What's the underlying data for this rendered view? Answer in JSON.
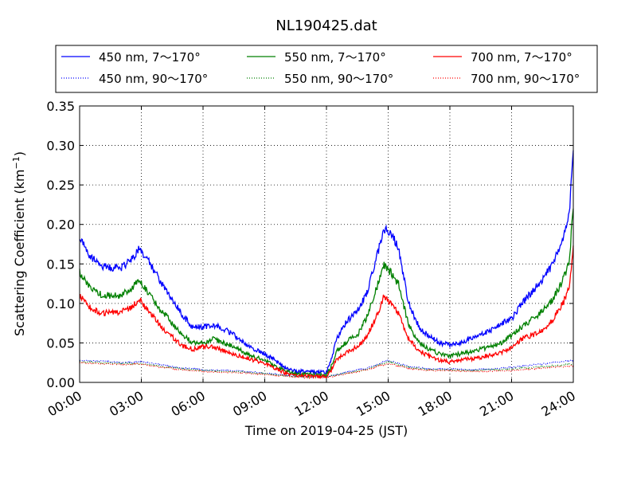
{
  "chart_data": {
    "type": "line",
    "title": "NL190425.dat",
    "xlabel": "Time on 2019-04-25 (JST)",
    "ylabel_main": "Scattering Coefficient (km",
    "ylabel_exp": "−1",
    "ylabel_close": ")",
    "xlim": [
      0,
      24
    ],
    "ylim": [
      0,
      0.35
    ],
    "x_ticks": [
      0,
      3,
      6,
      9,
      12,
      15,
      18,
      21,
      24
    ],
    "x_tick_labels": [
      "00:00",
      "03:00",
      "06:00",
      "09:00",
      "12:00",
      "15:00",
      "18:00",
      "21:00",
      "24:00"
    ],
    "y_ticks": [
      0,
      0.05,
      0.1,
      0.15,
      0.2,
      0.25,
      0.3,
      0.35
    ],
    "y_tick_labels": [
      "0.00",
      "0.05",
      "0.10",
      "0.15",
      "0.20",
      "0.25",
      "0.30",
      "0.35"
    ],
    "grid": true,
    "legend_position": "top",
    "series": [
      {
        "name": "450 nm, 7～170°",
        "color": "#0000ff",
        "style": "solid",
        "x": [
          0,
          0.5,
          1,
          1.5,
          2,
          2.5,
          2.9,
          3.3,
          4,
          4.5,
          5,
          5.5,
          6,
          6.5,
          7,
          7.5,
          8,
          8.5,
          9,
          9.5,
          10,
          10.5,
          11,
          11.5,
          12,
          12.2,
          12.5,
          13,
          13.5,
          14,
          14.5,
          14.8,
          15.1,
          15.5,
          16,
          16.5,
          17,
          17.5,
          18,
          18.5,
          19,
          19.5,
          20,
          20.5,
          21,
          21.5,
          22,
          22.5,
          23,
          23.5,
          23.8,
          24
        ],
        "y": [
          0.185,
          0.16,
          0.148,
          0.145,
          0.145,
          0.155,
          0.17,
          0.155,
          0.125,
          0.105,
          0.085,
          0.07,
          0.07,
          0.073,
          0.068,
          0.06,
          0.05,
          0.042,
          0.036,
          0.028,
          0.018,
          0.014,
          0.014,
          0.013,
          0.013,
          0.025,
          0.055,
          0.078,
          0.09,
          0.115,
          0.165,
          0.195,
          0.19,
          0.17,
          0.1,
          0.07,
          0.058,
          0.05,
          0.048,
          0.05,
          0.055,
          0.06,
          0.066,
          0.075,
          0.08,
          0.1,
          0.115,
          0.13,
          0.15,
          0.18,
          0.21,
          0.3
        ]
      },
      {
        "name": "450 nm, 90～170°",
        "color": "#0000ff",
        "style": "dotted",
        "x": [
          0,
          1,
          2,
          3,
          4,
          5,
          6,
          7,
          8,
          9,
          10,
          11,
          12,
          13,
          14,
          15,
          16,
          17,
          18,
          19,
          20,
          21,
          22,
          23,
          24
        ],
        "y": [
          0.028,
          0.027,
          0.025,
          0.026,
          0.022,
          0.018,
          0.016,
          0.015,
          0.014,
          0.012,
          0.009,
          0.007,
          0.007,
          0.013,
          0.018,
          0.028,
          0.02,
          0.017,
          0.017,
          0.016,
          0.017,
          0.019,
          0.022,
          0.025,
          0.028
        ]
      },
      {
        "name": "550 nm, 7～170°",
        "color": "#008000",
        "style": "solid",
        "x": [
          0,
          0.5,
          1,
          1.5,
          2,
          2.5,
          2.9,
          3.3,
          4,
          4.5,
          5,
          5.5,
          6,
          6.5,
          7,
          7.5,
          8,
          8.5,
          9,
          9.5,
          10,
          10.5,
          11,
          11.5,
          12,
          12.2,
          12.5,
          13,
          13.5,
          14,
          14.5,
          14.8,
          15.1,
          15.5,
          16,
          16.5,
          17,
          17.5,
          18,
          18.5,
          19,
          19.5,
          20,
          20.5,
          21,
          21.5,
          22,
          22.5,
          23,
          23.5,
          23.8,
          24
        ],
        "y": [
          0.14,
          0.12,
          0.112,
          0.11,
          0.11,
          0.118,
          0.13,
          0.115,
          0.09,
          0.075,
          0.06,
          0.05,
          0.05,
          0.055,
          0.05,
          0.045,
          0.038,
          0.032,
          0.028,
          0.021,
          0.014,
          0.011,
          0.01,
          0.01,
          0.01,
          0.018,
          0.04,
          0.052,
          0.06,
          0.085,
          0.125,
          0.148,
          0.14,
          0.125,
          0.072,
          0.05,
          0.042,
          0.036,
          0.034,
          0.036,
          0.038,
          0.042,
          0.046,
          0.05,
          0.06,
          0.07,
          0.08,
          0.09,
          0.105,
          0.13,
          0.15,
          0.225
        ]
      },
      {
        "name": "550 nm, 90～170°",
        "color": "#008000",
        "style": "dotted",
        "x": [
          0,
          1,
          2,
          3,
          4,
          5,
          6,
          7,
          8,
          9,
          10,
          11,
          12,
          13,
          14,
          15,
          16,
          17,
          18,
          19,
          20,
          21,
          22,
          23,
          24
        ],
        "y": [
          0.026,
          0.025,
          0.024,
          0.024,
          0.02,
          0.017,
          0.015,
          0.014,
          0.013,
          0.011,
          0.008,
          0.007,
          0.007,
          0.012,
          0.017,
          0.026,
          0.019,
          0.016,
          0.016,
          0.015,
          0.016,
          0.017,
          0.019,
          0.021,
          0.023
        ]
      },
      {
        "name": "700 nm, 7～170°",
        "color": "#ff0000",
        "style": "solid",
        "x": [
          0,
          0.5,
          1,
          1.5,
          2,
          2.5,
          2.9,
          3.3,
          4,
          4.5,
          5,
          5.5,
          6,
          6.5,
          7,
          7.5,
          8,
          8.5,
          9,
          9.5,
          10,
          10.5,
          11,
          11.5,
          12,
          12.2,
          12.5,
          13,
          13.5,
          14,
          14.5,
          14.8,
          15.1,
          15.5,
          16,
          16.5,
          17,
          17.5,
          18,
          18.5,
          19,
          19.5,
          20,
          20.5,
          21,
          21.5,
          22,
          22.5,
          23,
          23.5,
          23.8,
          24
        ],
        "y": [
          0.11,
          0.095,
          0.088,
          0.088,
          0.09,
          0.095,
          0.105,
          0.092,
          0.07,
          0.058,
          0.046,
          0.042,
          0.045,
          0.045,
          0.04,
          0.036,
          0.032,
          0.028,
          0.024,
          0.018,
          0.012,
          0.009,
          0.009,
          0.008,
          0.008,
          0.014,
          0.03,
          0.038,
          0.045,
          0.06,
          0.088,
          0.11,
          0.1,
          0.088,
          0.055,
          0.04,
          0.033,
          0.028,
          0.026,
          0.028,
          0.03,
          0.032,
          0.035,
          0.038,
          0.045,
          0.055,
          0.06,
          0.065,
          0.08,
          0.1,
          0.12,
          0.17
        ]
      },
      {
        "name": "700 nm, 90～170°",
        "color": "#ff0000",
        "style": "dotted",
        "x": [
          0,
          1,
          2,
          3,
          4,
          5,
          6,
          7,
          8,
          9,
          10,
          11,
          12,
          13,
          14,
          15,
          16,
          17,
          18,
          19,
          20,
          21,
          22,
          23,
          24
        ],
        "y": [
          0.025,
          0.024,
          0.023,
          0.023,
          0.019,
          0.016,
          0.014,
          0.013,
          0.012,
          0.01,
          0.008,
          0.006,
          0.006,
          0.011,
          0.016,
          0.024,
          0.018,
          0.015,
          0.015,
          0.014,
          0.014,
          0.015,
          0.017,
          0.019,
          0.021
        ]
      }
    ]
  }
}
